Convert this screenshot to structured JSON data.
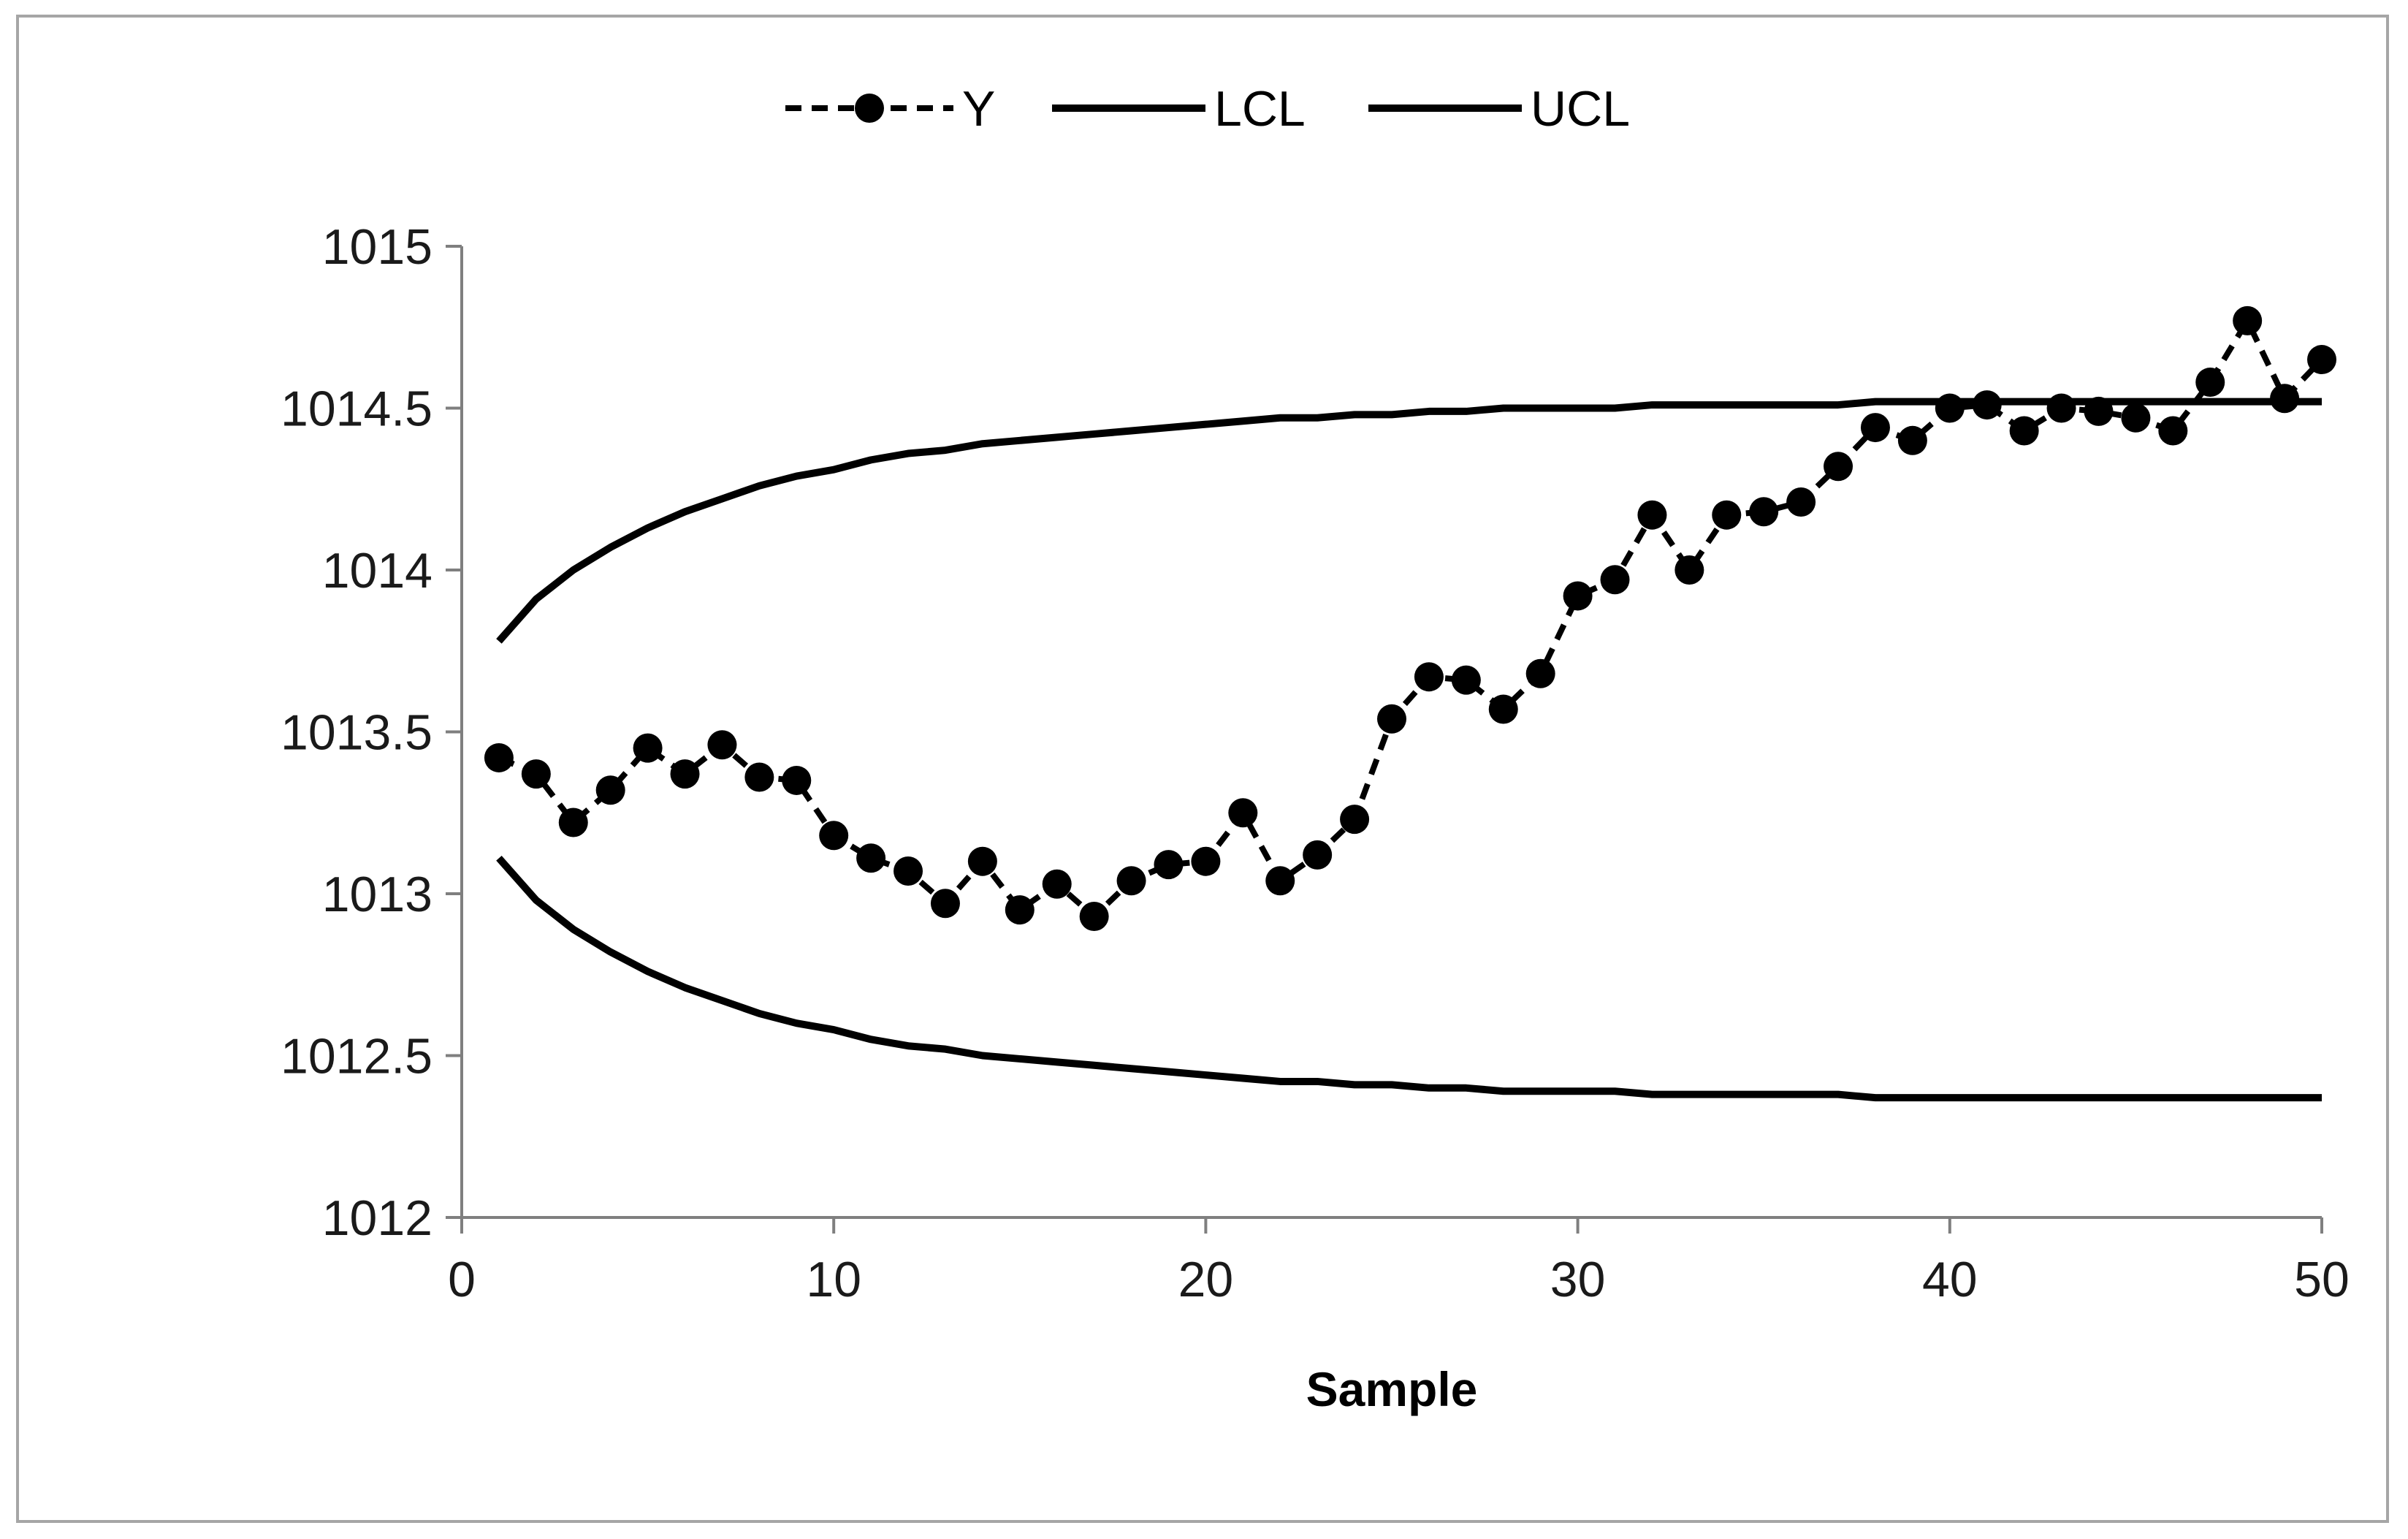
{
  "chart_data": {
    "type": "line",
    "title": "",
    "xlabel": "Sample",
    "ylabel": "",
    "xlim": [
      0,
      50
    ],
    "ylim": [
      1012,
      1015
    ],
    "xticks": [
      0,
      10,
      20,
      30,
      40,
      50
    ],
    "xtick_labels": [
      "0",
      "10",
      "20",
      "30",
      "40",
      "50"
    ],
    "yticks": [
      1012,
      1012.5,
      1013,
      1013.5,
      1014,
      1014.5,
      1015
    ],
    "ytick_labels": [
      "1012",
      "1012.5",
      "1013",
      "1013.5",
      "1014",
      "1014.5",
      "1015"
    ],
    "grid": false,
    "legend_position": "top",
    "x": [
      1,
      2,
      3,
      4,
      5,
      6,
      7,
      8,
      9,
      10,
      11,
      12,
      13,
      14,
      15,
      16,
      17,
      18,
      19,
      20,
      21,
      22,
      23,
      24,
      25,
      26,
      27,
      28,
      29,
      30,
      31,
      32,
      33,
      34,
      35,
      36,
      37,
      38,
      39,
      40,
      41,
      42,
      43,
      44,
      45,
      46,
      47,
      48,
      49,
      50
    ],
    "series": [
      {
        "name": "Y",
        "style": "dashed-marker",
        "color": "#000000",
        "values": [
          1013.42,
          1013.37,
          1013.22,
          1013.32,
          1013.45,
          1013.37,
          1013.46,
          1013.36,
          1013.35,
          1013.18,
          1013.11,
          1013.07,
          1012.97,
          1013.1,
          1012.95,
          1013.03,
          1012.93,
          1013.04,
          1013.09,
          1013.1,
          1013.25,
          1013.04,
          1013.12,
          1013.23,
          1013.54,
          1013.67,
          1013.66,
          1013.57,
          1013.68,
          1013.92,
          1013.97,
          1014.17,
          1014.0,
          1014.17,
          1014.18,
          1014.21,
          1014.32,
          1014.44,
          1014.4,
          1014.5,
          1014.51,
          1014.43,
          1014.5,
          1014.49,
          1014.47,
          1014.43,
          1014.58,
          1014.77,
          1014.53,
          1014.65
        ]
      },
      {
        "name": "LCL",
        "style": "solid",
        "color": "#000000",
        "values": [
          1013.11,
          1012.98,
          1012.89,
          1012.82,
          1012.76,
          1012.71,
          1012.67,
          1012.63,
          1012.6,
          1012.58,
          1012.55,
          1012.53,
          1012.52,
          1012.5,
          1012.49,
          1012.48,
          1012.47,
          1012.46,
          1012.45,
          1012.44,
          1012.43,
          1012.42,
          1012.42,
          1012.41,
          1012.41,
          1012.4,
          1012.4,
          1012.39,
          1012.39,
          1012.39,
          1012.39,
          1012.38,
          1012.38,
          1012.38,
          1012.38,
          1012.38,
          1012.38,
          1012.37,
          1012.37,
          1012.37,
          1012.37,
          1012.37,
          1012.37,
          1012.37,
          1012.37,
          1012.37,
          1012.37,
          1012.37,
          1012.37,
          1012.37
        ]
      },
      {
        "name": "UCL",
        "style": "solid",
        "color": "#000000",
        "values": [
          1013.78,
          1013.91,
          1014.0,
          1014.07,
          1014.13,
          1014.18,
          1014.22,
          1014.26,
          1014.29,
          1014.31,
          1014.34,
          1014.36,
          1014.37,
          1014.39,
          1014.4,
          1014.41,
          1014.42,
          1014.43,
          1014.44,
          1014.45,
          1014.46,
          1014.47,
          1014.47,
          1014.48,
          1014.48,
          1014.49,
          1014.49,
          1014.5,
          1014.5,
          1014.5,
          1014.5,
          1014.51,
          1014.51,
          1014.51,
          1014.51,
          1014.51,
          1014.51,
          1014.52,
          1014.52,
          1014.52,
          1014.52,
          1014.52,
          1014.52,
          1014.52,
          1014.52,
          1014.52,
          1014.52,
          1014.52,
          1014.52,
          1014.52
        ]
      }
    ]
  }
}
